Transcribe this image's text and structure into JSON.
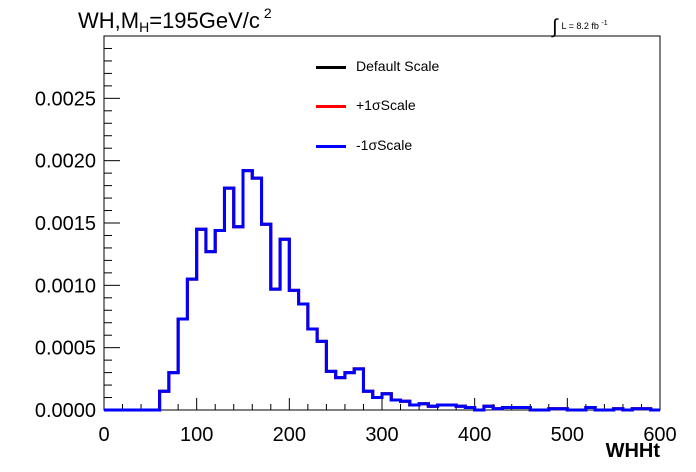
{
  "title": {
    "main": "WH,M",
    "sub": "H",
    "rest": "=195GeV/c",
    "sup": "2"
  },
  "lumi": {
    "integral": "∫",
    "text": "L = 8.2 fb",
    "sup": "-1"
  },
  "chart_data": {
    "type": "line",
    "style": "step-histogram",
    "xlabel": "WHHt",
    "ylabel": "",
    "xlim": [
      0,
      600
    ],
    "ylim": [
      0,
      0.003
    ],
    "xticks": [
      0,
      100,
      200,
      300,
      400,
      500,
      600
    ],
    "xtick_labels": [
      "0",
      "100",
      "200",
      "300",
      "400",
      "500",
      "600"
    ],
    "yticks": [
      0.0,
      0.0005,
      0.001,
      0.0015,
      0.002,
      0.0025
    ],
    "ytick_labels": [
      "0.0000",
      "0.0005",
      "0.0010",
      "0.0015",
      "0.0020",
      "0.0025"
    ],
    "grid": false,
    "legend_position": "top-center",
    "bin_edges": [
      0,
      10,
      20,
      30,
      40,
      50,
      60,
      70,
      80,
      90,
      100,
      110,
      120,
      130,
      140,
      150,
      160,
      170,
      180,
      190,
      200,
      210,
      220,
      230,
      240,
      250,
      260,
      270,
      280,
      290,
      300,
      310,
      320,
      330,
      340,
      350,
      360,
      370,
      380,
      390,
      400,
      410,
      420,
      430,
      440,
      450,
      460,
      470,
      480,
      490,
      500,
      510,
      520,
      530,
      540,
      550,
      560,
      570,
      580,
      590,
      600
    ],
    "series": [
      {
        "name": "Default Scale",
        "color": "#000000",
        "values": [
          0,
          0,
          0,
          0,
          0,
          0,
          0.00015,
          0.0003,
          0.00073,
          0.00105,
          0.00145,
          0.00127,
          0.00144,
          0.00178,
          0.00147,
          0.00192,
          0.00186,
          0.00149,
          0.00097,
          0.00137,
          0.00096,
          0.00085,
          0.00065,
          0.00055,
          0.00031,
          0.00026,
          0.0003,
          0.00033,
          0.00015,
          0.0001,
          0.00013,
          8e-05,
          7e-05,
          4e-05,
          5e-05,
          3e-05,
          4e-05,
          4e-05,
          3e-05,
          2e-05,
          0,
          3e-05,
          1e-05,
          2e-05,
          2e-05,
          2e-05,
          0,
          0,
          1e-05,
          1e-05,
          0,
          0,
          2e-05,
          0,
          0,
          1e-05,
          0,
          1e-05,
          1e-05,
          0
        ]
      },
      {
        "name": "+1σScale",
        "color": "#ff0000",
        "values": [
          0,
          0,
          0,
          0,
          0,
          0,
          0.00015,
          0.0003,
          0.00073,
          0.00105,
          0.00145,
          0.00127,
          0.00144,
          0.00178,
          0.00147,
          0.00192,
          0.00186,
          0.00149,
          0.00097,
          0.00137,
          0.00096,
          0.00085,
          0.00065,
          0.00055,
          0.00031,
          0.00026,
          0.0003,
          0.00033,
          0.00015,
          0.0001,
          0.00013,
          8e-05,
          7e-05,
          4e-05,
          5e-05,
          3e-05,
          4e-05,
          4e-05,
          3e-05,
          2e-05,
          0,
          3e-05,
          1e-05,
          2e-05,
          2e-05,
          2e-05,
          0,
          0,
          1e-05,
          1e-05,
          0,
          0,
          2e-05,
          0,
          0,
          1e-05,
          0,
          1e-05,
          1e-05,
          0
        ]
      },
      {
        "name": "-1σScale",
        "color": "#0000ff",
        "values": [
          0,
          0,
          0,
          0,
          0,
          0,
          0.00015,
          0.0003,
          0.00073,
          0.00105,
          0.00145,
          0.00127,
          0.00144,
          0.00178,
          0.00147,
          0.00192,
          0.00186,
          0.00149,
          0.00097,
          0.00137,
          0.00096,
          0.00085,
          0.00065,
          0.00055,
          0.00031,
          0.00026,
          0.0003,
          0.00033,
          0.00015,
          0.0001,
          0.00013,
          8e-05,
          7e-05,
          4e-05,
          5e-05,
          3e-05,
          4e-05,
          4e-05,
          3e-05,
          2e-05,
          0,
          3e-05,
          1e-05,
          2e-05,
          2e-05,
          2e-05,
          0,
          0,
          1e-05,
          1e-05,
          0,
          0,
          2e-05,
          0,
          0,
          1e-05,
          0,
          1e-05,
          1e-05,
          0
        ]
      }
    ]
  }
}
